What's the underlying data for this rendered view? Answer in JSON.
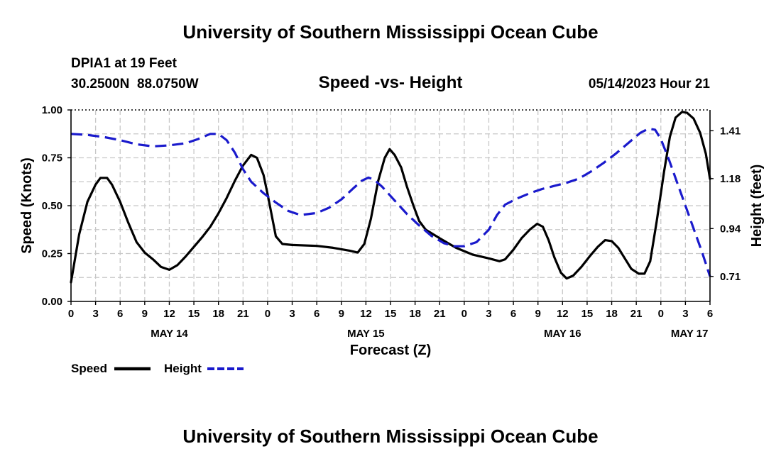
{
  "chart_data": {
    "type": "line",
    "title": "University of Southern Mississippi Ocean Cube",
    "subtitle": "Speed -vs- Height",
    "footer_title": "University of Southern Mississippi Ocean Cube",
    "station": "DPIA1 at 19 Feet",
    "location": "30.2500N  88.0750W",
    "datetime": "05/14/2023 Hour 21",
    "xlabel": "Forecast (Z)",
    "ylabel_left": "Speed (Knots)",
    "ylabel_right": "Height (feet)",
    "x_range": [
      0,
      78
    ],
    "ylim_left": [
      0,
      1.0
    ],
    "ylim_right": [
      0.59,
      1.51
    ],
    "x_ticks": [
      {
        "h": 0,
        "label": "0"
      },
      {
        "h": 3,
        "label": "3"
      },
      {
        "h": 6,
        "label": "6"
      },
      {
        "h": 9,
        "label": "9"
      },
      {
        "h": 12,
        "label": "12"
      },
      {
        "h": 15,
        "label": "15"
      },
      {
        "h": 18,
        "label": "18"
      },
      {
        "h": 21,
        "label": "21"
      },
      {
        "h": 24,
        "label": "0"
      },
      {
        "h": 27,
        "label": "3"
      },
      {
        "h": 30,
        "label": "6"
      },
      {
        "h": 33,
        "label": "9"
      },
      {
        "h": 36,
        "label": "12"
      },
      {
        "h": 39,
        "label": "15"
      },
      {
        "h": 42,
        "label": "18"
      },
      {
        "h": 45,
        "label": "21"
      },
      {
        "h": 48,
        "label": "0"
      },
      {
        "h": 51,
        "label": "3"
      },
      {
        "h": 54,
        "label": "6"
      },
      {
        "h": 57,
        "label": "9"
      },
      {
        "h": 60,
        "label": "12"
      },
      {
        "h": 63,
        "label": "15"
      },
      {
        "h": 66,
        "label": "18"
      },
      {
        "h": 69,
        "label": "21"
      },
      {
        "h": 72,
        "label": "0"
      },
      {
        "h": 75,
        "label": "3"
      },
      {
        "h": 78,
        "label": "6"
      }
    ],
    "day_labels": [
      {
        "h": 12,
        "label": "MAY 14"
      },
      {
        "h": 36,
        "label": "MAY 15"
      },
      {
        "h": 60,
        "label": "MAY 16"
      },
      {
        "h": 75.5,
        "label": "MAY 17"
      }
    ],
    "y_ticks_left": [
      {
        "v": 0.0,
        "label": "0.00"
      },
      {
        "v": 0.25,
        "label": "0.25"
      },
      {
        "v": 0.5,
        "label": "0.50"
      },
      {
        "v": 0.75,
        "label": "0.75"
      },
      {
        "v": 1.0,
        "label": "1.00"
      }
    ],
    "y_ticks_right": [
      {
        "v": 0.71,
        "label": "0.71"
      },
      {
        "v": 0.94,
        "label": "0.94"
      },
      {
        "v": 1.18,
        "label": "1.18"
      },
      {
        "v": 1.41,
        "label": "1.41"
      }
    ],
    "series": [
      {
        "name": "Speed",
        "axis": "left",
        "color": "#000000",
        "dash": "solid",
        "points": [
          [
            0,
            0.1
          ],
          [
            1,
            0.35
          ],
          [
            2,
            0.52
          ],
          [
            3,
            0.61
          ],
          [
            3.6,
            0.645
          ],
          [
            4.4,
            0.645
          ],
          [
            5,
            0.61
          ],
          [
            6,
            0.52
          ],
          [
            7,
            0.41
          ],
          [
            8,
            0.31
          ],
          [
            9,
            0.255
          ],
          [
            10,
            0.22
          ],
          [
            11,
            0.18
          ],
          [
            12,
            0.165
          ],
          [
            13,
            0.19
          ],
          [
            14,
            0.235
          ],
          [
            15,
            0.285
          ],
          [
            16,
            0.335
          ],
          [
            17,
            0.39
          ],
          [
            18,
            0.46
          ],
          [
            19,
            0.54
          ],
          [
            20,
            0.63
          ],
          [
            21,
            0.71
          ],
          [
            22,
            0.765
          ],
          [
            22.7,
            0.75
          ],
          [
            23.5,
            0.66
          ],
          [
            24,
            0.56
          ],
          [
            25,
            0.34
          ],
          [
            25.8,
            0.3
          ],
          [
            27,
            0.295
          ],
          [
            30,
            0.29
          ],
          [
            32,
            0.28
          ],
          [
            34,
            0.265
          ],
          [
            35,
            0.255
          ],
          [
            35.8,
            0.3
          ],
          [
            36.6,
            0.43
          ],
          [
            37.5,
            0.63
          ],
          [
            38.3,
            0.75
          ],
          [
            38.9,
            0.795
          ],
          [
            39.5,
            0.765
          ],
          [
            40.3,
            0.7
          ],
          [
            41,
            0.6
          ],
          [
            41.8,
            0.5
          ],
          [
            42.5,
            0.42
          ],
          [
            43.3,
            0.375
          ],
          [
            45,
            0.33
          ],
          [
            47,
            0.28
          ],
          [
            49,
            0.245
          ],
          [
            51,
            0.225
          ],
          [
            52.3,
            0.21
          ],
          [
            53,
            0.22
          ],
          [
            54,
            0.27
          ],
          [
            55,
            0.33
          ],
          [
            56,
            0.375
          ],
          [
            56.9,
            0.405
          ],
          [
            57.6,
            0.39
          ],
          [
            58.3,
            0.32
          ],
          [
            59,
            0.23
          ],
          [
            59.8,
            0.15
          ],
          [
            60.5,
            0.12
          ],
          [
            61.3,
            0.135
          ],
          [
            62.3,
            0.18
          ],
          [
            63.3,
            0.235
          ],
          [
            64.3,
            0.285
          ],
          [
            65.2,
            0.32
          ],
          [
            66,
            0.315
          ],
          [
            66.8,
            0.28
          ],
          [
            67.6,
            0.225
          ],
          [
            68.4,
            0.17
          ],
          [
            69.3,
            0.145
          ],
          [
            70,
            0.145
          ],
          [
            70.7,
            0.21
          ],
          [
            71.5,
            0.42
          ],
          [
            72.4,
            0.68
          ],
          [
            73.1,
            0.86
          ],
          [
            73.8,
            0.96
          ],
          [
            74.6,
            0.99
          ],
          [
            75.2,
            0.985
          ],
          [
            76,
            0.955
          ],
          [
            76.8,
            0.88
          ],
          [
            77.5,
            0.77
          ],
          [
            78,
            0.64
          ]
        ]
      },
      {
        "name": "Height",
        "axis": "right",
        "color": "#1a1acc",
        "dash": "dashed",
        "points": [
          [
            0,
            1.395
          ],
          [
            2,
            1.39
          ],
          [
            4,
            1.38
          ],
          [
            6,
            1.365
          ],
          [
            8,
            1.345
          ],
          [
            10,
            1.335
          ],
          [
            12,
            1.34
          ],
          [
            14,
            1.35
          ],
          [
            15.5,
            1.37
          ],
          [
            17,
            1.395
          ],
          [
            18,
            1.395
          ],
          [
            19,
            1.365
          ],
          [
            20,
            1.305
          ],
          [
            21,
            1.225
          ],
          [
            22,
            1.165
          ],
          [
            23.5,
            1.11
          ],
          [
            25,
            1.065
          ],
          [
            26.5,
            1.025
          ],
          [
            28,
            1.005
          ],
          [
            30,
            1.015
          ],
          [
            31.5,
            1.04
          ],
          [
            33,
            1.08
          ],
          [
            34.5,
            1.135
          ],
          [
            35.5,
            1.17
          ],
          [
            36.3,
            1.185
          ],
          [
            37,
            1.175
          ],
          [
            38,
            1.14
          ],
          [
            39.5,
            1.075
          ],
          [
            41,
            1.01
          ],
          [
            42.5,
            0.955
          ],
          [
            44,
            0.905
          ],
          [
            45.5,
            0.87
          ],
          [
            46.8,
            0.855
          ],
          [
            48,
            0.855
          ],
          [
            49.5,
            0.875
          ],
          [
            51,
            0.935
          ],
          [
            52,
            1.005
          ],
          [
            53,
            1.055
          ],
          [
            54.5,
            1.085
          ],
          [
            56,
            1.11
          ],
          [
            57.5,
            1.13
          ],
          [
            59,
            1.145
          ],
          [
            60.5,
            1.16
          ],
          [
            62,
            1.18
          ],
          [
            63.5,
            1.215
          ],
          [
            65,
            1.255
          ],
          [
            66.5,
            1.3
          ],
          [
            68,
            1.35
          ],
          [
            69.5,
            1.4
          ],
          [
            70.5,
            1.42
          ],
          [
            71.3,
            1.415
          ],
          [
            72,
            1.37
          ],
          [
            73,
            1.27
          ],
          [
            74,
            1.16
          ],
          [
            75,
            1.05
          ],
          [
            76,
            0.94
          ],
          [
            77,
            0.83
          ],
          [
            78,
            0.71
          ]
        ]
      }
    ]
  },
  "legend": {
    "speed_label": "Speed",
    "height_label": "Height"
  }
}
